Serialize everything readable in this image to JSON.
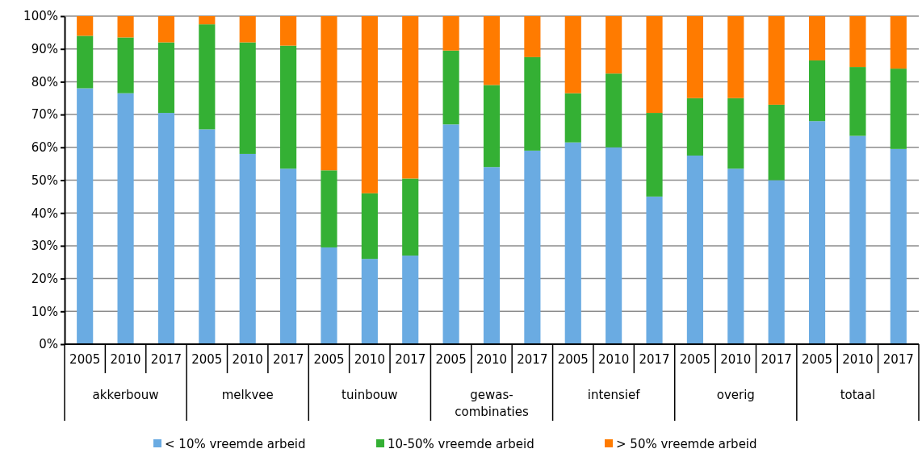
{
  "chart_data": {
    "type": "bar",
    "stacked": true,
    "grid": "y",
    "legend": "bottom",
    "categories": [
      "2005",
      "2010",
      "2017",
      "2005",
      "2010",
      "2017",
      "2005",
      "2010",
      "2017",
      "2005",
      "2010",
      "2017",
      "2005",
      "2010",
      "2017",
      "2005",
      "2010",
      "2017",
      "2005",
      "2010",
      "2017"
    ],
    "annotations": [
      "akkerbouw",
      "melkvee",
      "tuinbouw",
      "gewas-\ncombinaties",
      "intensief",
      "overig",
      "totaal"
    ],
    "ylim": [
      0,
      100
    ],
    "yticks": [
      {
        "value": 0,
        "label": "0%"
      },
      {
        "value": 10,
        "label": "10%"
      },
      {
        "value": 20,
        "label": "20%"
      },
      {
        "value": 30,
        "label": "30%"
      },
      {
        "value": 40,
        "label": "40%"
      },
      {
        "value": 50,
        "label": "50%"
      },
      {
        "value": 60,
        "label": "60%"
      },
      {
        "value": 70,
        "label": "70%"
      },
      {
        "value": 80,
        "label": "80%"
      },
      {
        "value": 90,
        "label": "90%"
      },
      {
        "value": 100,
        "label": "100%"
      }
    ],
    "series": [
      {
        "name": "< 10% vreemde arbeid",
        "color": "#6aabe2",
        "values": [
          78,
          76.5,
          70.5,
          65.5,
          58,
          53.5,
          29.5,
          26,
          27,
          67,
          54,
          59,
          61.5,
          60,
          45,
          57.5,
          53.5,
          50,
          68,
          63.5,
          59.5
        ]
      },
      {
        "name": "10-50% vreemde arbeid",
        "color": "#34b034",
        "values": [
          16,
          17,
          21.5,
          32,
          34,
          37.5,
          23.5,
          20,
          23.5,
          22.5,
          25,
          28.5,
          15,
          22.5,
          25.5,
          17.5,
          21.5,
          23,
          18.5,
          21,
          24.5
        ]
      },
      {
        "name": "> 50% vreemde arbeid",
        "color": "#ff7b00",
        "values": [
          6,
          6.5,
          8,
          2.5,
          8,
          9,
          47,
          54,
          49.5,
          10.5,
          21,
          12.5,
          23.5,
          17.5,
          29.5,
          25,
          25,
          27,
          13.5,
          15.5,
          16
        ]
      }
    ]
  }
}
